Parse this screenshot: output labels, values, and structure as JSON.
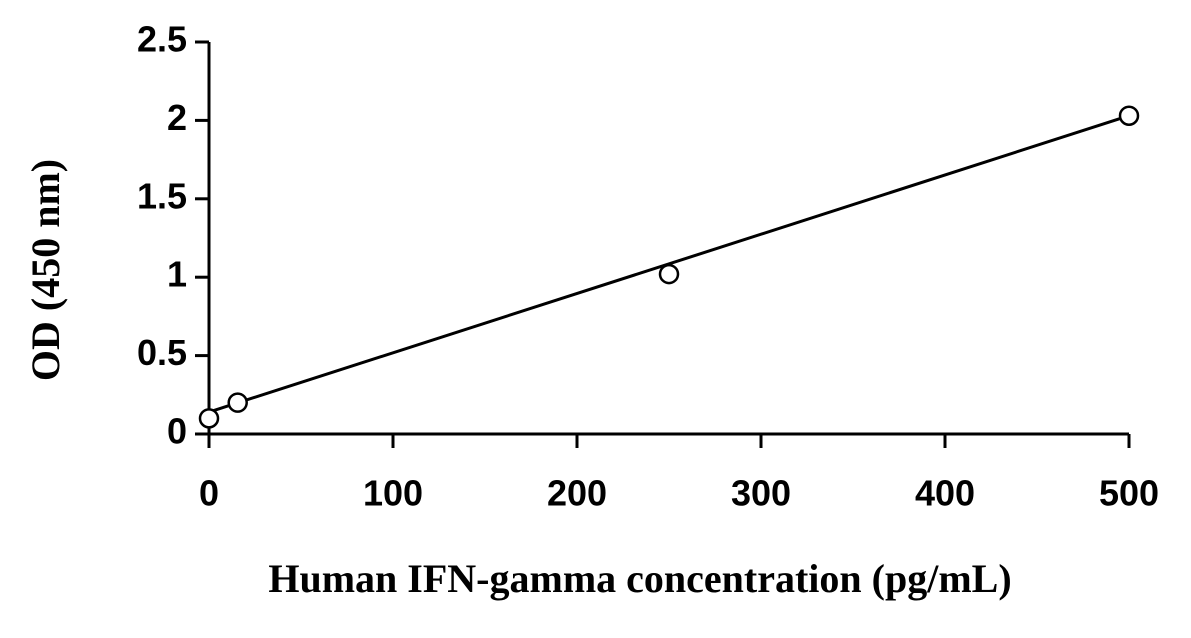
{
  "chart_data": {
    "type": "scatter",
    "x_label": "Human IFN-gamma concentration (pg/mL)",
    "y_label": "OD (450 nm)",
    "x": [
      0,
      15.6,
      250,
      500
    ],
    "values": [
      0.1,
      0.2,
      1.02,
      2.03
    ],
    "color": "#000000",
    "trendline": {
      "x": [
        0,
        500
      ],
      "values": [
        0.14,
        2.03
      ]
    },
    "xlim": [
      0,
      500
    ],
    "xticks": [
      0,
      100,
      200,
      300,
      400,
      500
    ],
    "ylim": [
      0,
      2.5
    ],
    "yticks": [
      0,
      0.5,
      1,
      1.5,
      2,
      2.5
    ],
    "grid": false
  }
}
